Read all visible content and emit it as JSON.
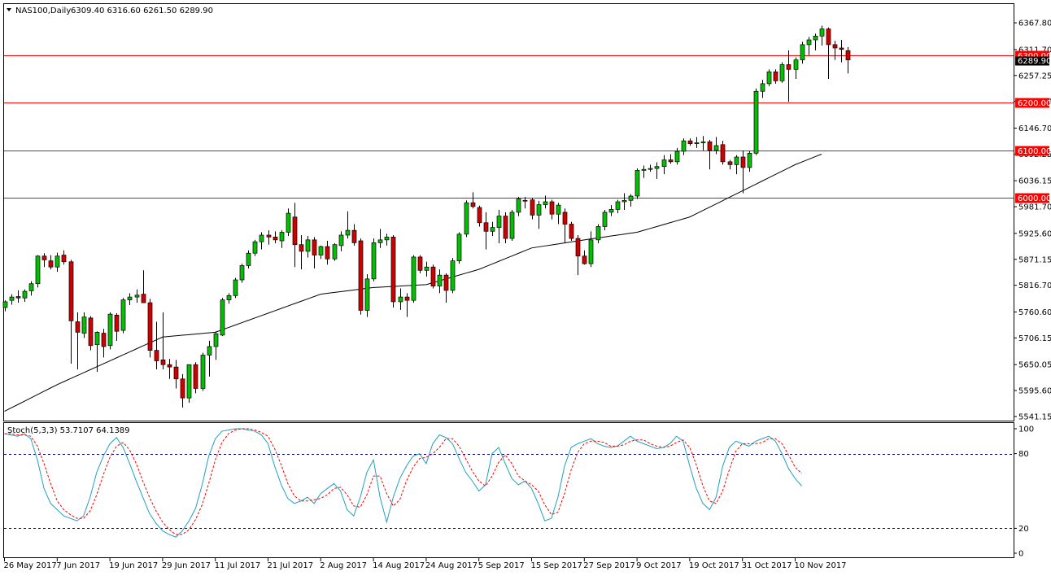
{
  "header": {
    "symbol": "NAS100,Daily",
    "ohlc": "6309.40 6316.60 6261.50 6289.90"
  },
  "stoch": {
    "label": "Stoch(5,3,3) 53.7107 64.1389",
    "levels": [
      "100",
      "80",
      "20",
      "0"
    ]
  },
  "colors": {
    "up": "#00c000",
    "down": "#d00000",
    "level_line": "#ff0000",
    "ma": "#000000",
    "stoch_main": "#20a0c0",
    "stoch_signal": "#ff0000",
    "stoch_level": "#0000c0"
  },
  "chart_data": [
    {
      "type": "candlestick",
      "title": "NAS100,Daily",
      "ylim": [
        5541,
        6385
      ],
      "y_ticks": [
        "6367.80",
        "6311.70",
        "6257.25",
        "6202.80",
        "6146.70",
        "6092.25",
        "6036.15",
        "5981.70",
        "5925.60",
        "5871.15",
        "5816.70",
        "5760.60",
        "5706.15",
        "5650.05",
        "5595.60",
        "5541.15"
      ],
      "current_price": "6289.90",
      "horizontal_levels": [
        "6300.00",
        "6200.00",
        "6100.00",
        "6000.00"
      ],
      "x_labels": [
        "26 May 2017",
        "7 Jun 2017",
        "19 Jun 2017",
        "29 Jun 2017",
        "11 Jul 2017",
        "21 Jul 2017",
        "2 Aug 2017",
        "14 Aug 2017",
        "24 Aug 2017",
        "5 Sep 2017",
        "15 Sep 2017",
        "27 Sep 2017",
        "9 Oct 2017",
        "19 Oct 2017",
        "31 Oct 2017",
        "10 Nov 2017"
      ],
      "x_label_index": [
        0,
        8,
        16,
        24,
        32,
        40,
        48,
        56,
        64,
        72,
        80,
        88,
        96,
        104,
        112,
        120
      ],
      "candles": [
        [
          5770,
          5785,
          5762,
          5782
        ],
        [
          5785,
          5798,
          5776,
          5792
        ],
        [
          5793,
          5806,
          5780,
          5790
        ],
        [
          5790,
          5808,
          5782,
          5804
        ],
        [
          5805,
          5825,
          5795,
          5820
        ],
        [
          5820,
          5880,
          5812,
          5878
        ],
        [
          5878,
          5884,
          5855,
          5870
        ],
        [
          5868,
          5880,
          5850,
          5855
        ],
        [
          5855,
          5885,
          5845,
          5878
        ],
        [
          5880,
          5890,
          5860,
          5866
        ],
        [
          5866,
          5870,
          5652,
          5742
        ],
        [
          5740,
          5760,
          5640,
          5718
        ],
        [
          5716,
          5760,
          5706,
          5750
        ],
        [
          5748,
          5752,
          5680,
          5690
        ],
        [
          5692,
          5720,
          5635,
          5718
        ],
        [
          5716,
          5725,
          5665,
          5688
        ],
        [
          5690,
          5760,
          5682,
          5756
        ],
        [
          5754,
          5758,
          5700,
          5720
        ],
        [
          5722,
          5790,
          5716,
          5786
        ],
        [
          5786,
          5800,
          5775,
          5792
        ],
        [
          5792,
          5808,
          5780,
          5796
        ],
        [
          5798,
          5848,
          5780,
          5780
        ],
        [
          5780,
          5788,
          5665,
          5680
        ],
        [
          5680,
          5740,
          5640,
          5658
        ],
        [
          5660,
          5760,
          5640,
          5650
        ],
        [
          5650,
          5662,
          5620,
          5645
        ],
        [
          5645,
          5660,
          5600,
          5620
        ],
        [
          5620,
          5630,
          5560,
          5580
        ],
        [
          5580,
          5650,
          5570,
          5650
        ],
        [
          5650,
          5655,
          5590,
          5600
        ],
        [
          5600,
          5675,
          5595,
          5670
        ],
        [
          5670,
          5700,
          5625,
          5688
        ],
        [
          5688,
          5720,
          5660,
          5715
        ],
        [
          5712,
          5790,
          5710,
          5786
        ],
        [
          5786,
          5800,
          5778,
          5795
        ],
        [
          5795,
          5832,
          5790,
          5828
        ],
        [
          5828,
          5862,
          5822,
          5858
        ],
        [
          5858,
          5890,
          5852,
          5884
        ],
        [
          5884,
          5912,
          5878,
          5908
        ],
        [
          5908,
          5928,
          5892,
          5922
        ],
        [
          5922,
          5932,
          5902,
          5918
        ],
        [
          5918,
          5930,
          5905,
          5912
        ],
        [
          5910,
          5932,
          5895,
          5928
        ],
        [
          5928,
          5978,
          5920,
          5968
        ],
        [
          5960,
          5990,
          5855,
          5902
        ],
        [
          5902,
          5922,
          5850,
          5888
        ],
        [
          5888,
          5920,
          5875,
          5912
        ],
        [
          5912,
          5918,
          5852,
          5880
        ],
        [
          5880,
          5900,
          5872,
          5898
        ],
        [
          5898,
          5910,
          5860,
          5872
        ],
        [
          5872,
          5905,
          5868,
          5902
        ],
        [
          5900,
          5930,
          5888,
          5922
        ],
        [
          5922,
          5972,
          5915,
          5932
        ],
        [
          5932,
          5945,
          5900,
          5906
        ],
        [
          5910,
          5915,
          5755,
          5764
        ],
        [
          5764,
          5840,
          5750,
          5830
        ],
        [
          5830,
          5915,
          5825,
          5906
        ],
        [
          5906,
          5935,
          5895,
          5912
        ],
        [
          5912,
          5925,
          5900,
          5918
        ],
        [
          5918,
          5922,
          5770,
          5782
        ],
        [
          5782,
          5810,
          5765,
          5792
        ],
        [
          5792,
          5800,
          5750,
          5785
        ],
        [
          5785,
          5880,
          5780,
          5876
        ],
        [
          5876,
          5880,
          5842,
          5848
        ],
        [
          5848,
          5866,
          5835,
          5855
        ],
        [
          5855,
          5860,
          5810,
          5815
        ],
        [
          5815,
          5850,
          5800,
          5838
        ],
        [
          5838,
          5842,
          5780,
          5806
        ],
        [
          5806,
          5874,
          5800,
          5868
        ],
        [
          5868,
          5928,
          5862,
          5924
        ],
        [
          5924,
          5995,
          5918,
          5990
        ],
        [
          5990,
          6012,
          5978,
          5982
        ],
        [
          5980,
          5984,
          5940,
          5948
        ],
        [
          5948,
          5970,
          5892,
          5930
        ],
        [
          5930,
          5950,
          5920,
          5938
        ],
        [
          5938,
          5975,
          5905,
          5962
        ],
        [
          5962,
          5970,
          5905,
          5915
        ],
        [
          5915,
          5975,
          5910,
          5970
        ],
        [
          5970,
          6002,
          5962,
          5998
        ],
        [
          5995,
          6002,
          5978,
          5994
        ],
        [
          5996,
          6000,
          5955,
          5964
        ],
        [
          5964,
          5994,
          5935,
          5986
        ],
        [
          5986,
          6005,
          5978,
          5992
        ],
        [
          5992,
          5996,
          5955,
          5966
        ],
        [
          5966,
          5990,
          5945,
          5985
        ],
        [
          5970,
          5978,
          5905,
          5945
        ],
        [
          5945,
          5950,
          5910,
          5915
        ],
        [
          5915,
          5922,
          5838,
          5878
        ],
        [
          5878,
          5890,
          5860,
          5862
        ],
        [
          5862,
          5930,
          5855,
          5912
        ],
        [
          5912,
          5945,
          5905,
          5940
        ],
        [
          5940,
          5975,
          5932,
          5970
        ],
        [
          5970,
          5985,
          5962,
          5976
        ],
        [
          5976,
          5996,
          5968,
          5992
        ],
        [
          5992,
          6010,
          5975,
          5995
        ],
        [
          5995,
          6008,
          5982,
          6004
        ],
        [
          6004,
          6062,
          5998,
          6058
        ],
        [
          6058,
          6068,
          6042,
          6060
        ],
        [
          6060,
          6070,
          6055,
          6062
        ],
        [
          6062,
          6075,
          6040,
          6066
        ],
        [
          6066,
          6090,
          6050,
          6080
        ],
        [
          6080,
          6092,
          6072,
          6076
        ],
        [
          6076,
          6105,
          6070,
          6098
        ],
        [
          6098,
          6125,
          6090,
          6120
        ],
        [
          6120,
          6125,
          6110,
          6114
        ],
        [
          6114,
          6128,
          6105,
          6116
        ],
        [
          6116,
          6130,
          6100,
          6118
        ],
        [
          6118,
          6122,
          6060,
          6100
        ],
        [
          6100,
          6128,
          6092,
          6110
        ],
        [
          6112,
          6120,
          6070,
          6076
        ],
        [
          6076,
          6080,
          6060,
          6070
        ],
        [
          6070,
          6090,
          6050,
          6086
        ],
        [
          6086,
          6100,
          6010,
          6064
        ],
        [
          6064,
          6098,
          6055,
          6094
        ],
        [
          6094,
          6230,
          6090,
          6224
        ],
        [
          6224,
          6248,
          6210,
          6240
        ],
        [
          6240,
          6270,
          6235,
          6265
        ],
        [
          6265,
          6270,
          6240,
          6246
        ],
        [
          6246,
          6285,
          6242,
          6280
        ],
        [
          6280,
          6310,
          6202,
          6270
        ],
        [
          6270,
          6295,
          6250,
          6290
        ],
        [
          6290,
          6328,
          6282,
          6322
        ],
        [
          6322,
          6338,
          6300,
          6332
        ],
        [
          6332,
          6345,
          6310,
          6340
        ],
        [
          6340,
          6362,
          6320,
          6355
        ],
        [
          6355,
          6358,
          6250,
          6322
        ],
        [
          6322,
          6330,
          6290,
          6315
        ],
        [
          6315,
          6332,
          6285,
          6312
        ],
        [
          6309.4,
          6316.6,
          6261.5,
          6289.9
        ]
      ],
      "ma_period": 50,
      "ma": [
        [
          0,
          5552
        ],
        [
          8,
          5608
        ],
        [
          16,
          5658
        ],
        [
          24,
          5708
        ],
        [
          32,
          5718
        ],
        [
          40,
          5758
        ],
        [
          48,
          5798
        ],
        [
          56,
          5812
        ],
        [
          64,
          5818
        ],
        [
          72,
          5850
        ],
        [
          80,
          5895
        ],
        [
          88,
          5912
        ],
        [
          96,
          5928
        ],
        [
          104,
          5960
        ],
        [
          112,
          6015
        ],
        [
          120,
          6070
        ],
        [
          124,
          6092
        ]
      ]
    },
    {
      "type": "line",
      "title": "Stoch(5,3,3)",
      "ylim": [
        0,
        100
      ],
      "levels": [
        80,
        20
      ],
      "series": [
        {
          "name": "53.7107",
          "values": [
            96,
            95,
            94,
            96,
            92,
            75,
            52,
            40,
            35,
            30,
            28,
            26,
            30,
            45,
            65,
            78,
            88,
            93,
            85,
            72,
            58,
            45,
            32,
            24,
            18,
            15,
            13,
            18,
            26,
            36,
            55,
            78,
            92,
            98,
            99,
            100,
            100,
            99,
            98,
            95,
            88,
            70,
            55,
            44,
            40,
            42,
            45,
            40,
            48,
            52,
            56,
            50,
            35,
            30,
            45,
            65,
            75,
            45,
            25,
            45,
            60,
            70,
            78,
            80,
            72,
            88,
            95,
            93,
            88,
            76,
            65,
            58,
            50,
            55,
            80,
            85,
            72,
            60,
            55,
            58,
            52,
            40,
            26,
            28,
            45,
            70,
            85,
            88,
            90,
            92,
            88,
            86,
            85,
            86,
            90,
            94,
            90,
            88,
            86,
            84,
            85,
            88,
            94,
            90,
            70,
            52,
            40,
            35,
            45,
            70,
            85,
            90,
            88,
            86,
            90,
            92,
            94,
            90,
            80,
            68,
            60,
            54
          ]
        },
        {
          "name": "64.1389",
          "values": [
            96,
            96,
            95,
            95,
            94,
            86,
            72,
            56,
            42,
            35,
            31,
            28,
            28,
            34,
            47,
            63,
            77,
            86,
            89,
            83,
            72,
            58,
            45,
            34,
            25,
            19,
            15,
            15,
            19,
            27,
            39,
            56,
            75,
            89,
            96,
            99,
            100,
            100,
            99,
            97,
            94,
            84,
            71,
            56,
            46,
            42,
            42,
            43,
            44,
            47,
            52,
            53,
            47,
            38,
            37,
            47,
            62,
            62,
            48,
            38,
            43,
            58,
            69,
            76,
            77,
            80,
            85,
            92,
            92,
            86,
            76,
            66,
            58,
            54,
            62,
            73,
            79,
            72,
            62,
            58,
            55,
            50,
            39,
            31,
            33,
            48,
            67,
            81,
            88,
            90,
            90,
            89,
            86,
            86,
            87,
            90,
            91,
            91,
            88,
            86,
            85,
            86,
            89,
            91,
            85,
            71,
            54,
            42,
            40,
            50,
            67,
            82,
            88,
            88,
            88,
            89,
            92,
            92,
            88,
            79,
            69,
            64
          ]
        }
      ]
    }
  ]
}
